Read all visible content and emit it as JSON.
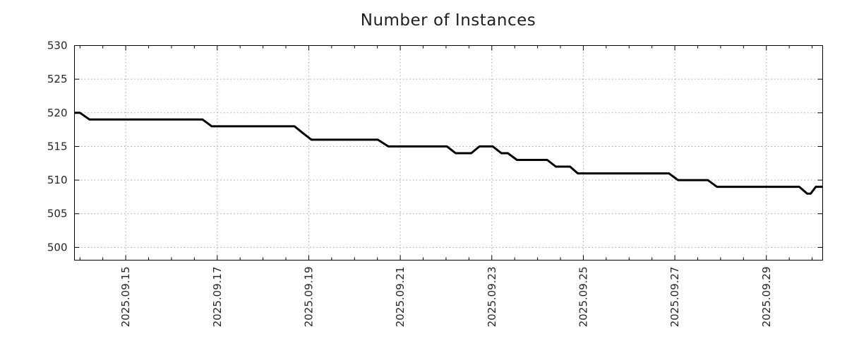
{
  "chart_data": {
    "type": "line",
    "title": "Number of Instances",
    "xlabel": "",
    "ylabel": "",
    "legend": "none",
    "grid": "dotted, at major ticks, both axes",
    "background_color": "#ffffff",
    "line_color": "#000000",
    "line_width": 3,
    "grid_color": "#a3a3a3",
    "axis_color": "#000000",
    "text_color": "#262626",
    "x_unit": "day of month, September 2025",
    "xlim": [
      13.88,
      30.23
    ],
    "ylim": [
      498.1,
      530
    ],
    "y_ticks": [
      500,
      505,
      510,
      515,
      520,
      525,
      530
    ],
    "y_tick_labels": [
      "500",
      "505",
      "510",
      "515",
      "520",
      "525",
      "530"
    ],
    "x_major_ticks": [
      15,
      17,
      19,
      21,
      23,
      25,
      27,
      29
    ],
    "x_tick_labels": [
      "2025.09.15",
      "2025.09.17",
      "2025.09.19",
      "2025.09.21",
      "2025.09.23",
      "2025.09.25",
      "2025.09.27",
      "2025.09.29"
    ],
    "x_minor_tick_step": 0.5,
    "x_tick_label_rotation_deg": -90,
    "series": [
      {
        "name": "instances",
        "points": [
          [
            13.88,
            520
          ],
          [
            14.0,
            520
          ],
          [
            14.21,
            519
          ],
          [
            16.68,
            519
          ],
          [
            16.88,
            518
          ],
          [
            18.69,
            518
          ],
          [
            18.87,
            517
          ],
          [
            19.06,
            516
          ],
          [
            20.51,
            516
          ],
          [
            20.74,
            515
          ],
          [
            22.02,
            515
          ],
          [
            22.21,
            514
          ],
          [
            22.55,
            514
          ],
          [
            22.73,
            515
          ],
          [
            23.02,
            515
          ],
          [
            23.21,
            514
          ],
          [
            23.35,
            514
          ],
          [
            23.55,
            513
          ],
          [
            24.21,
            513
          ],
          [
            24.4,
            512
          ],
          [
            24.71,
            512
          ],
          [
            24.88,
            511
          ],
          [
            26.87,
            511
          ],
          [
            27.07,
            510
          ],
          [
            27.72,
            510
          ],
          [
            27.92,
            509
          ],
          [
            29.72,
            509
          ],
          [
            29.89,
            508
          ],
          [
            29.97,
            508
          ],
          [
            30.08,
            509
          ],
          [
            30.23,
            509
          ]
        ]
      }
    ]
  }
}
